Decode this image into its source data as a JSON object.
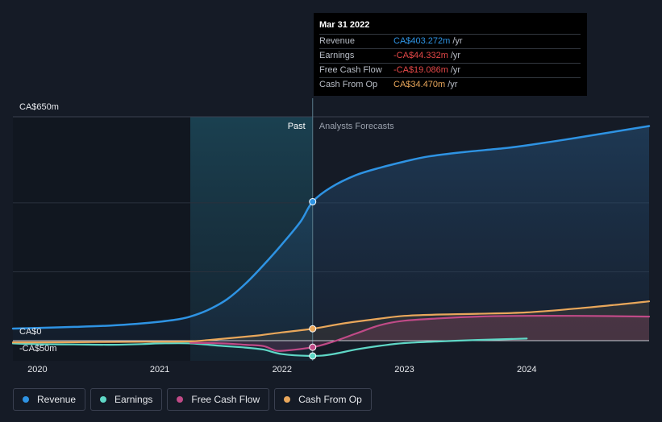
{
  "chart_data": {
    "type": "line",
    "title": "",
    "xlabel": "",
    "ylabel": "",
    "y_tick_labels": [
      "CA$650m",
      "CA$0",
      "-CA$50m"
    ],
    "x_tick_labels": [
      "2020",
      "2021",
      "2022",
      "2023",
      "2024"
    ],
    "region_labels": {
      "past": "Past",
      "forecast": "Analysts Forecasts"
    },
    "ylim": [
      -50,
      650
    ],
    "xlim": [
      2019.8,
      2025.0
    ],
    "past_start": 2021.25,
    "divider": 2022.25,
    "series": [
      {
        "name": "Revenue",
        "color": "#2e93e3",
        "points": [
          [
            2019.8,
            35
          ],
          [
            2020.0,
            37
          ],
          [
            2020.3,
            40
          ],
          [
            2020.6,
            44
          ],
          [
            2020.85,
            50
          ],
          [
            2021.0,
            55
          ],
          [
            2021.15,
            62
          ],
          [
            2021.25,
            70
          ],
          [
            2021.4,
            90
          ],
          [
            2021.55,
            120
          ],
          [
            2021.7,
            165
          ],
          [
            2021.85,
            220
          ],
          [
            2022.0,
            280
          ],
          [
            2022.15,
            345
          ],
          [
            2022.25,
            403.3
          ],
          [
            2022.4,
            445
          ],
          [
            2022.6,
            480
          ],
          [
            2022.8,
            502
          ],
          [
            2023.0,
            520
          ],
          [
            2023.2,
            535
          ],
          [
            2023.5,
            548
          ],
          [
            2023.8,
            558
          ],
          [
            2024.0,
            567
          ],
          [
            2024.3,
            583
          ],
          [
            2024.6,
            600
          ],
          [
            2025.0,
            623
          ]
        ]
      },
      {
        "name": "Earnings",
        "color": "#5fd7c6",
        "points": [
          [
            2019.8,
            -8
          ],
          [
            2020.0,
            -10
          ],
          [
            2020.3,
            -11
          ],
          [
            2020.6,
            -12
          ],
          [
            2020.85,
            -10
          ],
          [
            2021.0,
            -8
          ],
          [
            2021.25,
            -8
          ],
          [
            2021.5,
            -15
          ],
          [
            2021.7,
            -20
          ],
          [
            2021.85,
            -26
          ],
          [
            2022.0,
            -39
          ],
          [
            2022.25,
            -44.3
          ],
          [
            2022.4,
            -40
          ],
          [
            2022.6,
            -26
          ],
          [
            2022.8,
            -15
          ],
          [
            2023.0,
            -7
          ],
          [
            2023.3,
            -2
          ],
          [
            2023.6,
            2
          ],
          [
            2024.0,
            6
          ]
        ]
      },
      {
        "name": "Free Cash Flow",
        "color": "#c04a87",
        "points": [
          [
            2021.25,
            -6
          ],
          [
            2021.5,
            -8
          ],
          [
            2021.7,
            -12
          ],
          [
            2021.85,
            -16
          ],
          [
            2021.95,
            -29
          ],
          [
            2022.05,
            -28
          ],
          [
            2022.25,
            -19.1
          ],
          [
            2022.4,
            -5
          ],
          [
            2022.6,
            20
          ],
          [
            2022.8,
            45
          ],
          [
            2023.0,
            58
          ],
          [
            2023.3,
            65
          ],
          [
            2023.6,
            70
          ],
          [
            2024.0,
            72
          ],
          [
            2024.4,
            72
          ],
          [
            2025.0,
            70
          ]
        ]
      },
      {
        "name": "Cash From Op",
        "color": "#e9a75b",
        "points": [
          [
            2019.8,
            -5
          ],
          [
            2020.0,
            -5
          ],
          [
            2020.5,
            -4
          ],
          [
            2021.0,
            -3
          ],
          [
            2021.25,
            -2
          ],
          [
            2021.5,
            5
          ],
          [
            2021.8,
            15
          ],
          [
            2022.0,
            24
          ],
          [
            2022.25,
            34.5
          ],
          [
            2022.5,
            50
          ],
          [
            2022.8,
            64
          ],
          [
            2023.0,
            72
          ],
          [
            2023.3,
            76
          ],
          [
            2023.6,
            78
          ],
          [
            2024.0,
            82
          ],
          [
            2024.4,
            93
          ],
          [
            2024.7,
            103
          ],
          [
            2025.0,
            114
          ]
        ]
      }
    ],
    "highlight_points": [
      {
        "series": "Revenue",
        "x": 2022.25,
        "y": 403.3
      },
      {
        "series": "Cash From Op",
        "x": 2022.25,
        "y": 34.5
      },
      {
        "series": "Free Cash Flow",
        "x": 2022.25,
        "y": -19.1
      },
      {
        "series": "Earnings",
        "x": 2022.25,
        "y": -44.3
      }
    ]
  },
  "tooltip": {
    "date": "Mar 31 2022",
    "unit": "/yr",
    "rows": [
      {
        "label": "Revenue",
        "value": "CA$403.272m",
        "color": "#2e93e3"
      },
      {
        "label": "Earnings",
        "value": "-CA$44.332m",
        "color": "#e54848"
      },
      {
        "label": "Free Cash Flow",
        "value": "-CA$19.086m",
        "color": "#e54848"
      },
      {
        "label": "Cash From Op",
        "value": "CA$34.470m",
        "color": "#e9a75b"
      }
    ]
  },
  "legend": [
    {
      "label": "Revenue",
      "color": "#2e93e3"
    },
    {
      "label": "Earnings",
      "color": "#5fd7c6"
    },
    {
      "label": "Free Cash Flow",
      "color": "#c04a87"
    },
    {
      "label": "Cash From Op",
      "color": "#e9a75b"
    }
  ]
}
